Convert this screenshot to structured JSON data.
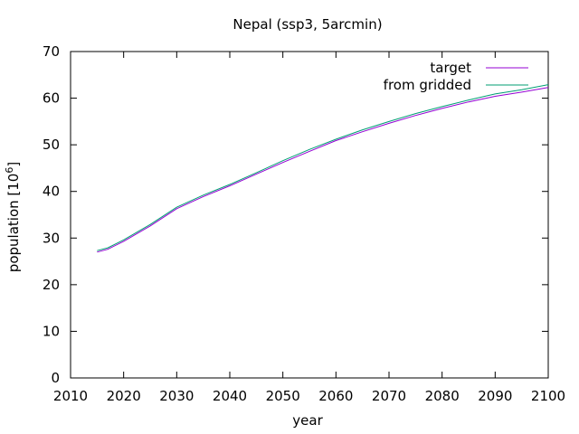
{
  "chart_data": {
    "type": "line",
    "title": "Nepal (ssp3, 5arcmin)",
    "xlabel": "year",
    "ylabel": "population [10^6]",
    "ylabel_base": "population [10",
    "ylabel_exp": "6",
    "ylabel_tail": "]",
    "xlim": [
      2010,
      2100
    ],
    "ylim": [
      0,
      70
    ],
    "xticks": [
      "2010",
      "2020",
      "2030",
      "2040",
      "2050",
      "2060",
      "2070",
      "2080",
      "2090",
      "2100"
    ],
    "yticks": [
      "0",
      "10",
      "20",
      "30",
      "40",
      "50",
      "60",
      "70"
    ],
    "grid": false,
    "legend_position": "top-right",
    "series": [
      {
        "name": "target",
        "color": "#9400d3",
        "x": [
          2015,
          2017,
          2020,
          2025,
          2030,
          2035,
          2040,
          2045,
          2050,
          2055,
          2060,
          2065,
          2070,
          2075,
          2080,
          2085,
          2090,
          2095,
          2100
        ],
        "y": [
          27.0,
          27.6,
          29.3,
          32.6,
          36.3,
          38.9,
          41.2,
          43.7,
          46.2,
          48.6,
          50.9,
          52.8,
          54.6,
          56.3,
          57.8,
          59.2,
          60.4,
          61.3,
          62.3
        ]
      },
      {
        "name": "from gridded",
        "color": "#009e73",
        "x": [
          2015,
          2017,
          2020,
          2025,
          2030,
          2035,
          2040,
          2045,
          2050,
          2055,
          2060,
          2065,
          2070,
          2075,
          2080,
          2085,
          2090,
          2095,
          2100
        ],
        "y": [
          27.3,
          27.9,
          29.6,
          32.9,
          36.6,
          39.2,
          41.5,
          44.0,
          46.6,
          49.0,
          51.2,
          53.2,
          55.0,
          56.7,
          58.2,
          59.6,
          60.9,
          61.8,
          62.9
        ]
      }
    ]
  }
}
